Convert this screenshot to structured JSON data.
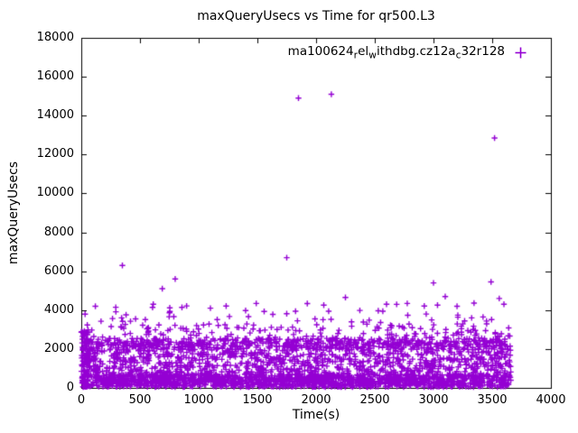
{
  "chart_data": {
    "type": "scatter",
    "title": "maxQueryUsecs vs Time for qr500.L3",
    "xlabel": "Time(s)",
    "ylabel": "maxQueryUsecs",
    "xlim": [
      0,
      4000
    ],
    "ylim": [
      0,
      18000
    ],
    "xticks": [
      0,
      500,
      1000,
      1500,
      2000,
      2500,
      3000,
      3500,
      4000
    ],
    "yticks": [
      0,
      2000,
      4000,
      6000,
      8000,
      10000,
      12000,
      14000,
      16000,
      18000
    ],
    "grid": false,
    "legend_position": "top-right-inside",
    "background": "#ffffff",
    "border_color": "#000000",
    "series": [
      {
        "name": "ma100624_rel_withdbg.cz12a_c32r128",
        "name_segments": [
          {
            "text": "ma100624"
          },
          {
            "text": "r",
            "sub": true
          },
          {
            "text": "el"
          },
          {
            "text": "w",
            "sub": true
          },
          {
            "text": "ithdbg.cz12a"
          },
          {
            "text": "c",
            "sub": true
          },
          {
            "text": "32r128"
          }
        ],
        "marker": "plus",
        "color": "#9400D3",
        "x_data_range": [
          0,
          3660
        ],
        "outliers": [
          [
            120,
            4200
          ],
          [
            350,
            6300
          ],
          [
            690,
            5100
          ],
          [
            800,
            5600
          ],
          [
            1100,
            4100
          ],
          [
            1750,
            6700
          ],
          [
            1850,
            14900
          ],
          [
            2130,
            15100
          ],
          [
            2250,
            4650
          ],
          [
            2600,
            4300
          ],
          [
            3000,
            5400
          ],
          [
            3100,
            4700
          ],
          [
            3490,
            5450
          ],
          [
            3520,
            12850
          ],
          [
            3560,
            4600
          ],
          [
            3600,
            4300
          ]
        ],
        "clusters": [
          {
            "count": 1500,
            "x": [
              5,
              3660
            ],
            "y": [
              40,
              700
            ]
          },
          {
            "count": 850,
            "x": [
              5,
              3660
            ],
            "y": [
              700,
              1950
            ]
          },
          {
            "count": 650,
            "x": [
              5,
              3660
            ],
            "y": [
              1950,
              2550
            ]
          },
          {
            "count": 150,
            "x": [
              10,
              3650
            ],
            "y": [
              2550,
              3300
            ]
          },
          {
            "count": 60,
            "x": [
              20,
              3640
            ],
            "y": [
              3300,
              4400
            ]
          },
          {
            "count": 60,
            "x": [
              0,
              70
            ],
            "y": [
              300,
              3000
            ]
          }
        ],
        "seed": 7
      }
    ]
  }
}
